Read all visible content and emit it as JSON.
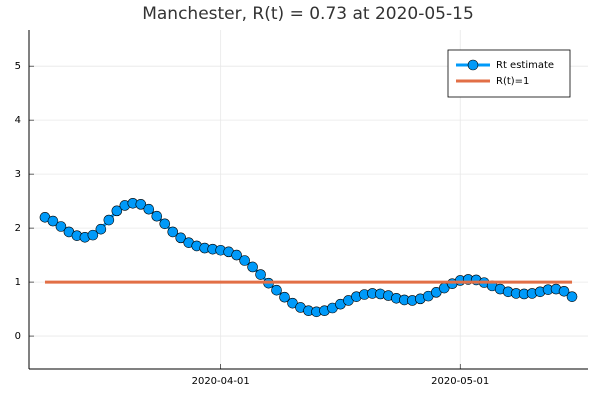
{
  "chart_data": {
    "type": "line",
    "title": "Manchester, R(t) = 0.73 at 2020-05-15",
    "x": [
      "2020-03-10",
      "2020-03-11",
      "2020-03-12",
      "2020-03-13",
      "2020-03-14",
      "2020-03-15",
      "2020-03-16",
      "2020-03-17",
      "2020-03-18",
      "2020-03-19",
      "2020-03-20",
      "2020-03-21",
      "2020-03-22",
      "2020-03-23",
      "2020-03-24",
      "2020-03-25",
      "2020-03-26",
      "2020-03-27",
      "2020-03-28",
      "2020-03-29",
      "2020-03-30",
      "2020-03-31",
      "2020-04-01",
      "2020-04-02",
      "2020-04-03",
      "2020-04-04",
      "2020-04-05",
      "2020-04-06",
      "2020-04-07",
      "2020-04-08",
      "2020-04-09",
      "2020-04-10",
      "2020-04-11",
      "2020-04-12",
      "2020-04-13",
      "2020-04-14",
      "2020-04-15",
      "2020-04-16",
      "2020-04-17",
      "2020-04-18",
      "2020-04-19",
      "2020-04-20",
      "2020-04-21",
      "2020-04-22",
      "2020-04-23",
      "2020-04-24",
      "2020-04-25",
      "2020-04-26",
      "2020-04-27",
      "2020-04-28",
      "2020-04-29",
      "2020-04-30",
      "2020-05-01",
      "2020-05-02",
      "2020-05-03",
      "2020-05-04",
      "2020-05-05",
      "2020-05-06",
      "2020-05-07",
      "2020-05-08",
      "2020-05-09",
      "2020-05-10",
      "2020-05-11",
      "2020-05-12",
      "2020-05-13",
      "2020-05-14",
      "2020-05-15"
    ],
    "series": [
      {
        "name": "Rt estimate",
        "color": "#009af9",
        "markers": true,
        "values": [
          2.2,
          2.13,
          2.03,
          1.93,
          1.86,
          1.83,
          1.87,
          1.98,
          2.15,
          2.32,
          2.42,
          2.46,
          2.44,
          2.35,
          2.22,
          2.08,
          1.93,
          1.82,
          1.73,
          1.67,
          1.63,
          1.61,
          1.59,
          1.56,
          1.5,
          1.4,
          1.28,
          1.14,
          0.98,
          0.85,
          0.72,
          0.61,
          0.53,
          0.47,
          0.45,
          0.47,
          0.52,
          0.59,
          0.66,
          0.73,
          0.77,
          0.79,
          0.78,
          0.75,
          0.7,
          0.67,
          0.66,
          0.69,
          0.74,
          0.81,
          0.89,
          0.97,
          1.03,
          1.05,
          1.04,
          0.99,
          0.93,
          0.87,
          0.82,
          0.79,
          0.78,
          0.79,
          0.82,
          0.86,
          0.87,
          0.83,
          0.73
        ]
      },
      {
        "name": "R(t)=1",
        "color": "#e26f46",
        "markers": false,
        "x": [
          "2020-03-10",
          "2020-05-15"
        ],
        "values": [
          1,
          1
        ]
      }
    ],
    "xlim": [
      "2020-03-08",
      "2020-05-17"
    ],
    "xticks": [
      "2020-04-01",
      "2020-05-01"
    ],
    "ylim": [
      -0.61,
      5.67
    ],
    "yticks": [
      0,
      1,
      2,
      3,
      4,
      5
    ],
    "grid": true,
    "legend": "top-right"
  }
}
